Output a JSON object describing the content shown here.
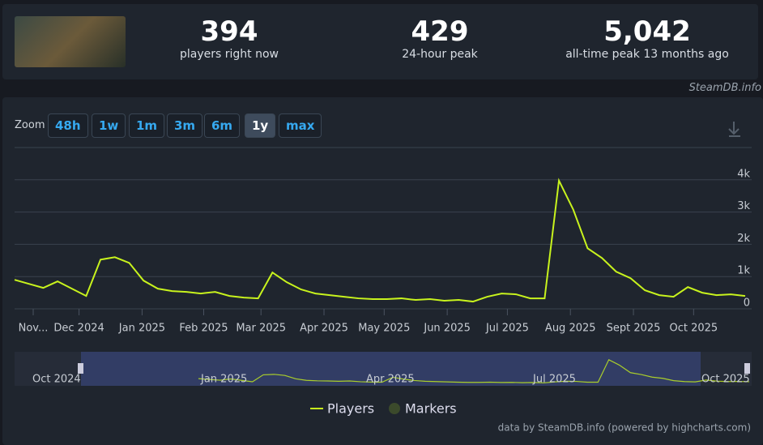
{
  "header": {
    "stats": [
      {
        "value": "394",
        "label": "players right now"
      },
      {
        "value": "429",
        "label": "24-hour peak"
      },
      {
        "value": "5,042",
        "label": "all-time peak 13 months ago"
      }
    ],
    "brand": "SteamDB.info"
  },
  "zoom": {
    "label": "Zoom",
    "buttons": [
      "48h",
      "1w",
      "1m",
      "3m",
      "6m",
      "1y",
      "max"
    ],
    "active": "1y"
  },
  "navigator": {
    "labels": [
      "Oct 2024",
      "Jan 2025",
      "Apr 2025",
      "Jul 2025",
      "Oct 2025"
    ]
  },
  "credits": "data by SteamDB.info (powered by highcharts.com)",
  "chart_data": {
    "type": "line",
    "series": [
      {
        "name": "Players",
        "color": "#c8f31d",
        "values": [
          900,
          775,
          650,
          850,
          625,
          400,
          1525,
          1600,
          1425,
          875,
          625,
          550,
          525,
          475,
          525,
          400,
          350,
          325,
          1125,
          825,
          600,
          475,
          425,
          375,
          325,
          300,
          300,
          325,
          275,
          300,
          250,
          275,
          225,
          375,
          475,
          450,
          325,
          325,
          3975,
          3075,
          1875,
          1575,
          1150,
          950,
          575,
          425,
          375,
          675,
          500,
          425,
          450,
          400
        ]
      }
    ],
    "markers": {
      "name": "Markers",
      "color": "#3b4a2b"
    },
    "xlim": [
      0,
      51
    ],
    "xticks": [
      {
        "value": 1.3,
        "label": "Nov..."
      },
      {
        "value": 4.5,
        "label": "Dec 2024"
      },
      {
        "value": 8.9,
        "label": "Jan 2025"
      },
      {
        "value": 13.2,
        "label": "Feb 2025"
      },
      {
        "value": 17.2,
        "label": "Mar 2025"
      },
      {
        "value": 21.6,
        "label": "Apr 2025"
      },
      {
        "value": 25.8,
        "label": "May 2025"
      },
      {
        "value": 30.2,
        "label": "Jun 2025"
      },
      {
        "value": 34.4,
        "label": "Jul 2025"
      },
      {
        "value": 38.8,
        "label": "Aug 2025"
      },
      {
        "value": 43.2,
        "label": "Sept 2025"
      },
      {
        "value": 47.4,
        "label": "Oct 2025"
      }
    ],
    "ylim": [
      0,
      5000
    ],
    "yticks": [
      {
        "value": 0,
        "label": "0"
      },
      {
        "value": 1000,
        "label": "1k"
      },
      {
        "value": 2000,
        "label": "2k"
      },
      {
        "value": 3000,
        "label": "3k"
      },
      {
        "value": 4000,
        "label": "4k"
      },
      {
        "value": 5000,
        "label": ""
      }
    ],
    "grid": true
  }
}
